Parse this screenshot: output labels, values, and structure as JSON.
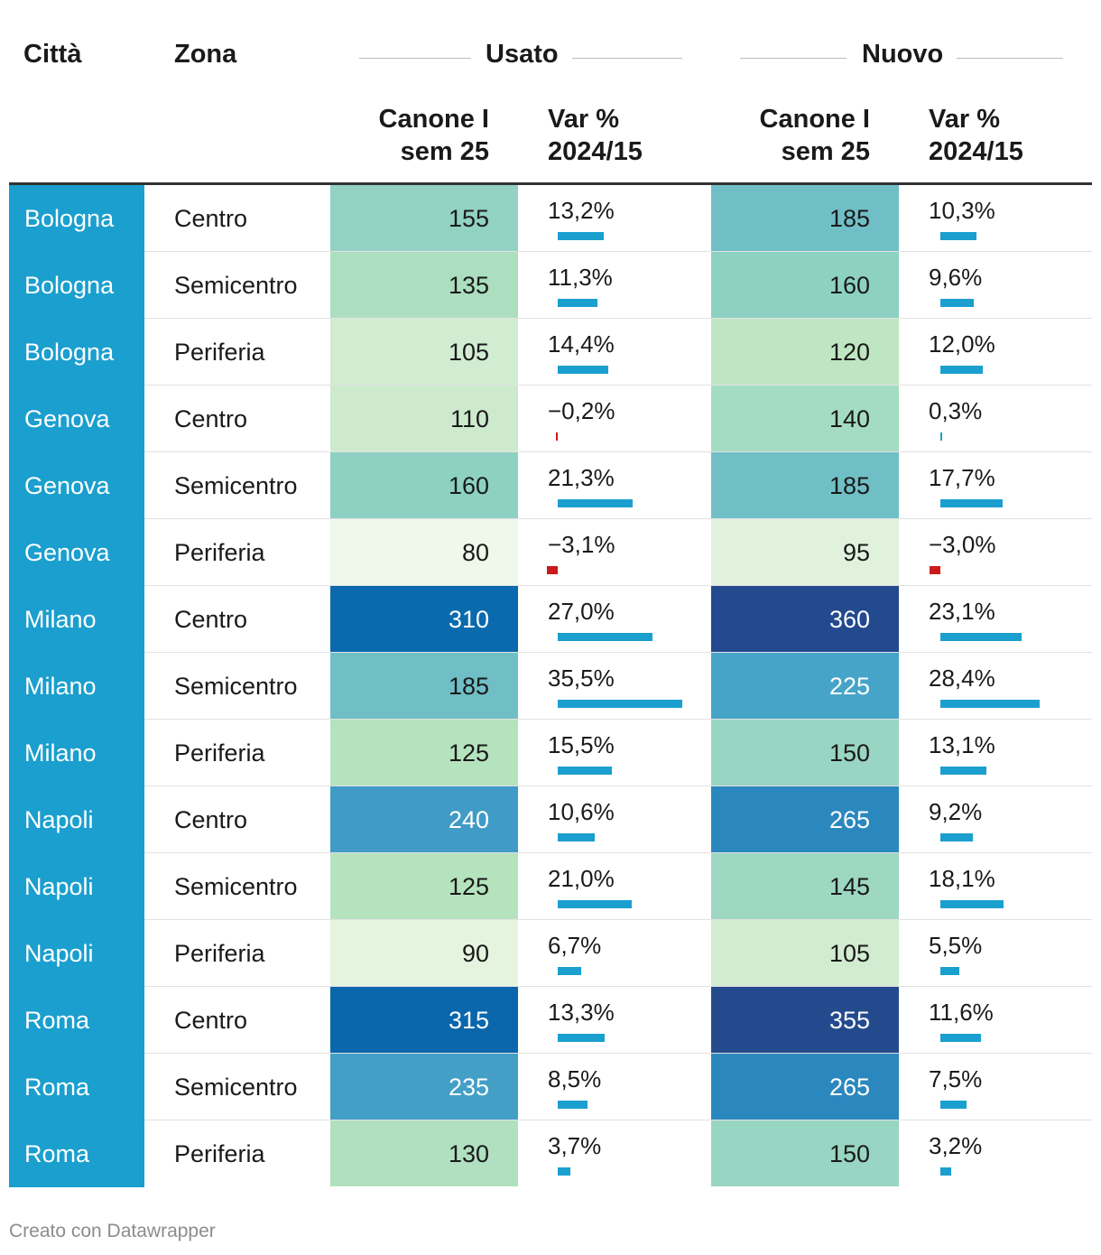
{
  "chart_data": {
    "type": "table",
    "columns": {
      "city": "Città",
      "zone": "Zona",
      "group_used": "Usato",
      "group_new": "Nuovo",
      "canone_l1": "Canone I",
      "canone_l2": "sem 25",
      "var_l1": "Var %",
      "var_l2": "2024/15"
    },
    "var_bar_max": 35.5,
    "colors": {
      "city_bg": "#1a9fce",
      "bar_positive": "#1a9fce",
      "bar_negative": "#cc1a1a"
    },
    "rows": [
      {
        "city": "Bologna",
        "zone": "Centro",
        "used": {
          "rent": "155",
          "var": "13,2%",
          "var_value": 13.2,
          "bg": "#92d2c2",
          "fg": "#1a1a1a"
        },
        "new": {
          "rent": "185",
          "var": "10,3%",
          "var_value": 10.3,
          "bg": "#70bfc6",
          "fg": "#1a1a1a"
        }
      },
      {
        "city": "Bologna",
        "zone": "Semicentro",
        "used": {
          "rent": "135",
          "var": "11,3%",
          "var_value": 11.3,
          "bg": "#abdfc0",
          "fg": "#1a1a1a"
        },
        "new": {
          "rent": "160",
          "var": "9,6%",
          "var_value": 9.6,
          "bg": "#8dd1c3",
          "fg": "#1a1a1a"
        }
      },
      {
        "city": "Bologna",
        "zone": "Periferia",
        "used": {
          "rent": "105",
          "var": "14,4%",
          "var_value": 14.4,
          "bg": "#d1ecd1",
          "fg": "#1a1a1a"
        },
        "new": {
          "rent": "120",
          "var": "12,0%",
          "var_value": 12.0,
          "bg": "#bfe6c2",
          "fg": "#1a1a1a"
        }
      },
      {
        "city": "Genova",
        "zone": "Centro",
        "used": {
          "rent": "110",
          "var": "−0,2%",
          "var_value": -0.2,
          "bg": "#cdeacd",
          "fg": "#1a1a1a"
        },
        "new": {
          "rent": "140",
          "var": "0,3%",
          "var_value": 0.3,
          "bg": "#a4dcc1",
          "fg": "#1a1a1a"
        }
      },
      {
        "city": "Genova",
        "zone": "Semicentro",
        "used": {
          "rent": "160",
          "var": "21,3%",
          "var_value": 21.3,
          "bg": "#8dd1c3",
          "fg": "#1a1a1a"
        },
        "new": {
          "rent": "185",
          "var": "17,7%",
          "var_value": 17.7,
          "bg": "#70bfc6",
          "fg": "#1a1a1a"
        }
      },
      {
        "city": "Genova",
        "zone": "Periferia",
        "used": {
          "rent": "80",
          "var": "−3,1%",
          "var_value": -3.1,
          "bg": "#eff8ea",
          "fg": "#1a1a1a"
        },
        "new": {
          "rent": "95",
          "var": "−3,0%",
          "var_value": -3.0,
          "bg": "#e0f2dc",
          "fg": "#1a1a1a"
        }
      },
      {
        "city": "Milano",
        "zone": "Centro",
        "used": {
          "rent": "310",
          "var": "27,0%",
          "var_value": 27.0,
          "bg": "#0b69ad",
          "fg": "#ffffff"
        },
        "new": {
          "rent": "360",
          "var": "23,1%",
          "var_value": 23.1,
          "bg": "#23498e",
          "fg": "#ffffff"
        }
      },
      {
        "city": "Milano",
        "zone": "Semicentro",
        "used": {
          "rent": "185",
          "var": "35,5%",
          "var_value": 35.5,
          "bg": "#70bfc6",
          "fg": "#1a1a1a"
        },
        "new": {
          "rent": "225",
          "var": "28,4%",
          "var_value": 28.4,
          "bg": "#46a4c8",
          "fg": "#ffffff"
        }
      },
      {
        "city": "Milano",
        "zone": "Periferia",
        "used": {
          "rent": "125",
          "var": "15,5%",
          "var_value": 15.5,
          "bg": "#b5e3be",
          "fg": "#1a1a1a"
        },
        "new": {
          "rent": "150",
          "var": "13,1%",
          "var_value": 13.1,
          "bg": "#98d5c2",
          "fg": "#1a1a1a"
        }
      },
      {
        "city": "Napoli",
        "zone": "Centro",
        "used": {
          "rent": "240",
          "var": "10,6%",
          "var_value": 10.6,
          "bg": "#409cc6",
          "fg": "#ffffff"
        },
        "new": {
          "rent": "265",
          "var": "9,2%",
          "var_value": 9.2,
          "bg": "#2b88be",
          "fg": "#ffffff"
        }
      },
      {
        "city": "Napoli",
        "zone": "Semicentro",
        "used": {
          "rent": "125",
          "var": "21,0%",
          "var_value": 21.0,
          "bg": "#b5e3be",
          "fg": "#1a1a1a"
        },
        "new": {
          "rent": "145",
          "var": "18,1%",
          "var_value": 18.1,
          "bg": "#9ed7c2",
          "fg": "#1a1a1a"
        }
      },
      {
        "city": "Napoli",
        "zone": "Periferia",
        "used": {
          "rent": "90",
          "var": "6,7%",
          "var_value": 6.7,
          "bg": "#e4f4df",
          "fg": "#1a1a1a"
        },
        "new": {
          "rent": "105",
          "var": "5,5%",
          "var_value": 5.5,
          "bg": "#d1ecd1",
          "fg": "#1a1a1a"
        }
      },
      {
        "city": "Roma",
        "zone": "Centro",
        "used": {
          "rent": "315",
          "var": "13,3%",
          "var_value": 13.3,
          "bg": "#0b67ab",
          "fg": "#ffffff"
        },
        "new": {
          "rent": "355",
          "var": "11,6%",
          "var_value": 11.6,
          "bg": "#244a8e",
          "fg": "#ffffff"
        }
      },
      {
        "city": "Roma",
        "zone": "Semicentro",
        "used": {
          "rent": "235",
          "var": "8,5%",
          "var_value": 8.5,
          "bg": "#439fc6",
          "fg": "#ffffff"
        },
        "new": {
          "rent": "265",
          "var": "7,5%",
          "var_value": 7.5,
          "bg": "#2b88be",
          "fg": "#ffffff"
        }
      },
      {
        "city": "Roma",
        "zone": "Periferia",
        "used": {
          "rent": "130",
          "var": "3,7%",
          "var_value": 3.7,
          "bg": "#b0e0bf",
          "fg": "#1a1a1a"
        },
        "new": {
          "rent": "150",
          "var": "3,2%",
          "var_value": 3.2,
          "bg": "#98d5c2",
          "fg": "#1a1a1a"
        }
      }
    ]
  },
  "footer": {
    "credit": "Creato con Datawrapper"
  }
}
